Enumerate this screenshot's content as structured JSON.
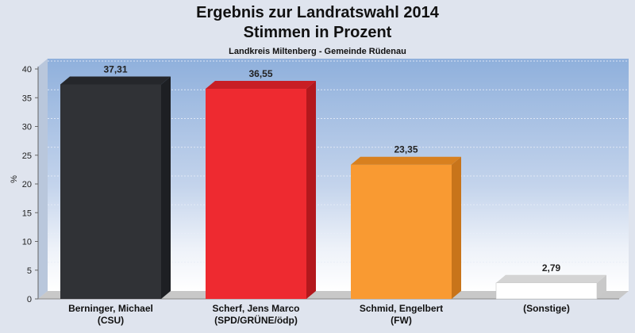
{
  "chart_data": {
    "type": "bar",
    "title": [
      "Ergebnis zur Landratswahl 2014",
      "Stimmen in Prozent"
    ],
    "subtitle": "Landkreis Miltenberg - Gemeinde Rüdenau",
    "ylabel": "%",
    "xlabel": "",
    "ylim": [
      0,
      40
    ],
    "yticks": [
      "0",
      "5",
      "10",
      "15",
      "20",
      "25",
      "30",
      "35",
      "40"
    ],
    "grid": true,
    "categories": [
      [
        "Berninger, Michael",
        "(CSU)"
      ],
      [
        "Scherf, Jens Marco",
        "(SPD/GRÜNE/ödp)"
      ],
      [
        "Schmid, Engelbert",
        "(FW)"
      ],
      [
        "(Sonstige)"
      ]
    ],
    "values": [
      37.31,
      36.55,
      23.35,
      2.79
    ],
    "value_labels": [
      "37,31",
      "36,55",
      "23,35",
      "2,79"
    ],
    "colors": [
      "#303236",
      "#ee2a30",
      "#f99a32",
      "#ffffff"
    ],
    "side_colors": [
      "#1d1f23",
      "#b3181d",
      "#c8741a",
      "#c9c9c9"
    ],
    "top_colors": [
      "#25272b",
      "#c81e24",
      "#d8801f",
      "#d4d4d4"
    ]
  }
}
